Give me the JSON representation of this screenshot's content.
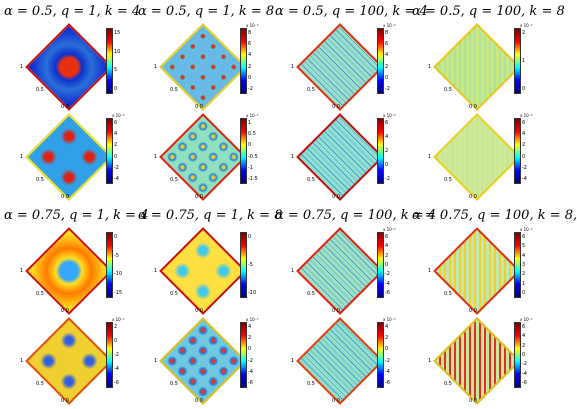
{
  "titles": [
    "α = 0.5, q = 1, k = 4",
    "α = 0.5, q = 1, k = 8",
    "α = 0.5, q = 100, k = 4",
    "α = 0.5, q = 100, k = 8",
    "α = 0.75, q = 1, k = 4",
    "α = 0.75, q = 1, k = 8",
    "α = 0.75, q = 100, k = 4",
    "α = 0.75, q = 100, k = 8,"
  ],
  "axis_labels": {
    "left": "1",
    "center": "0 0",
    "right": "0.5"
  },
  "colormap": [
    "#7f0000",
    "#ff0000",
    "#ffff00",
    "#00ffff",
    "#0000ff",
    "#00007f"
  ],
  "panels": [
    {
      "exponent": "",
      "ticks": [
        "15",
        "10",
        "5",
        "0"
      ],
      "bg": "#2a6fd8",
      "center": "#e83010",
      "ring": "#1030d0",
      "edge": "#c81010",
      "pattern": "blob"
    },
    {
      "exponent": "x 10⁻³",
      "ticks": [
        "8",
        "6",
        "4",
        "2",
        "0",
        "-2"
      ],
      "bg": "#6ab8e8",
      "center": "#d83020",
      "ring": "#50d0e8",
      "edge": "#e8d020",
      "pattern": "grid4"
    },
    {
      "exponent": "x 10⁻³",
      "ticks": [
        "8",
        "6",
        "4",
        "2",
        "0",
        "-2"
      ],
      "bg": "#9ae0c8",
      "center": "#c8f0b0",
      "ring": "#3080e0",
      "edge": "#e03010",
      "pattern": "rings"
    },
    {
      "exponent": "x 10⁻³",
      "ticks": [
        "2",
        "1",
        "0"
      ],
      "bg": "#c8e880",
      "center": "#b0e0a0",
      "ring": "#90d890",
      "edge": "#e8c820",
      "pattern": "fine"
    },
    {
      "exponent": "x 10⁻³",
      "ticks": [
        "6",
        "4",
        "2",
        "0",
        "-2",
        "-4"
      ],
      "bg": "#30a0e8",
      "center": "#e02010",
      "ring": "#1040d0",
      "edge": "#f0e020",
      "pattern": "grid2"
    },
    {
      "exponent": "x 10⁻³",
      "ticks": [
        "1",
        "0.5",
        "0",
        "-0.5",
        "-1",
        "-1.5"
      ],
      "bg": "#90e0c0",
      "center": "#f0d030",
      "ring": "#2080e0",
      "edge": "#e02010",
      "pattern": "grid4"
    },
    {
      "exponent": "x 10⁻³",
      "ticks": [
        "6",
        "4",
        "2",
        "0",
        "-2"
      ],
      "bg": "#90e0d0",
      "center": "#c0f0a0",
      "ring": "#3080e0",
      "edge": "#c01010",
      "pattern": "rings"
    },
    {
      "exponent": "x 10⁻³",
      "ticks": [
        "6",
        "4",
        "2",
        "0",
        "-2",
        "-4"
      ],
      "bg": "#c8e890",
      "center": "#d0e8a0",
      "ring": "#90d890",
      "edge": "#e8d020",
      "pattern": "fine"
    },
    {
      "exponent": "",
      "ticks": [
        "0",
        "-5",
        "-10",
        "-15"
      ],
      "bg": "#ff7a00",
      "center": "#38a8ff",
      "ring": "#ffe020",
      "edge": "#d01010",
      "pattern": "blob"
    },
    {
      "exponent": "",
      "ticks": [
        "0",
        "-5",
        "-10"
      ],
      "bg": "#ffe040",
      "center": "#40c8f0",
      "ring": "#f08020",
      "edge": "#c81010",
      "pattern": "grid2"
    },
    {
      "exponent": "x 10⁻³",
      "ticks": [
        "6",
        "4",
        "2",
        "0",
        "-2",
        "-4",
        "-6"
      ],
      "bg": "#a0e0c0",
      "center": "#c0f0a0",
      "ring": "#2090e0",
      "edge": "#e02010",
      "pattern": "rings"
    },
    {
      "exponent": "x 10⁻³",
      "ticks": [
        "6",
        "5",
        "4",
        "3",
        "2",
        "1",
        "0"
      ],
      "bg": "#c0e8b0",
      "center": "#f0d030",
      "ring": "#3070e0",
      "edge": "#e03010",
      "pattern": "fine"
    },
    {
      "exponent": "x 10⁻³",
      "ticks": [
        "2",
        "0",
        "-2",
        "-4",
        "-6"
      ],
      "bg": "#f0d030",
      "center": "#3060e0",
      "ring": "#e02010",
      "edge": "#e05010",
      "pattern": "grid2"
    },
    {
      "exponent": "x 10⁻³",
      "ticks": [
        "4",
        "2",
        "0",
        "-2",
        "-4",
        "-6"
      ],
      "bg": "#70c8e0",
      "center": "#f03020",
      "ring": "#2080e0",
      "edge": "#e0c020",
      "pattern": "grid4"
    },
    {
      "exponent": "x 10⁻³",
      "ticks": [
        "4",
        "2",
        "0",
        "-2",
        "-4",
        "-6"
      ],
      "bg": "#90e0c8",
      "center": "#d0f0a0",
      "ring": "#3080e0",
      "edge": "#e04010",
      "pattern": "rings"
    },
    {
      "exponent": "x 10⁻³",
      "ticks": [
        "6",
        "4",
        "2",
        "0",
        "-2",
        "-4",
        "-6"
      ],
      "bg": "#c8e8a0",
      "center": "#e03020",
      "ring": "#2060e0",
      "edge": "#e0c020",
      "pattern": "fine"
    }
  ]
}
